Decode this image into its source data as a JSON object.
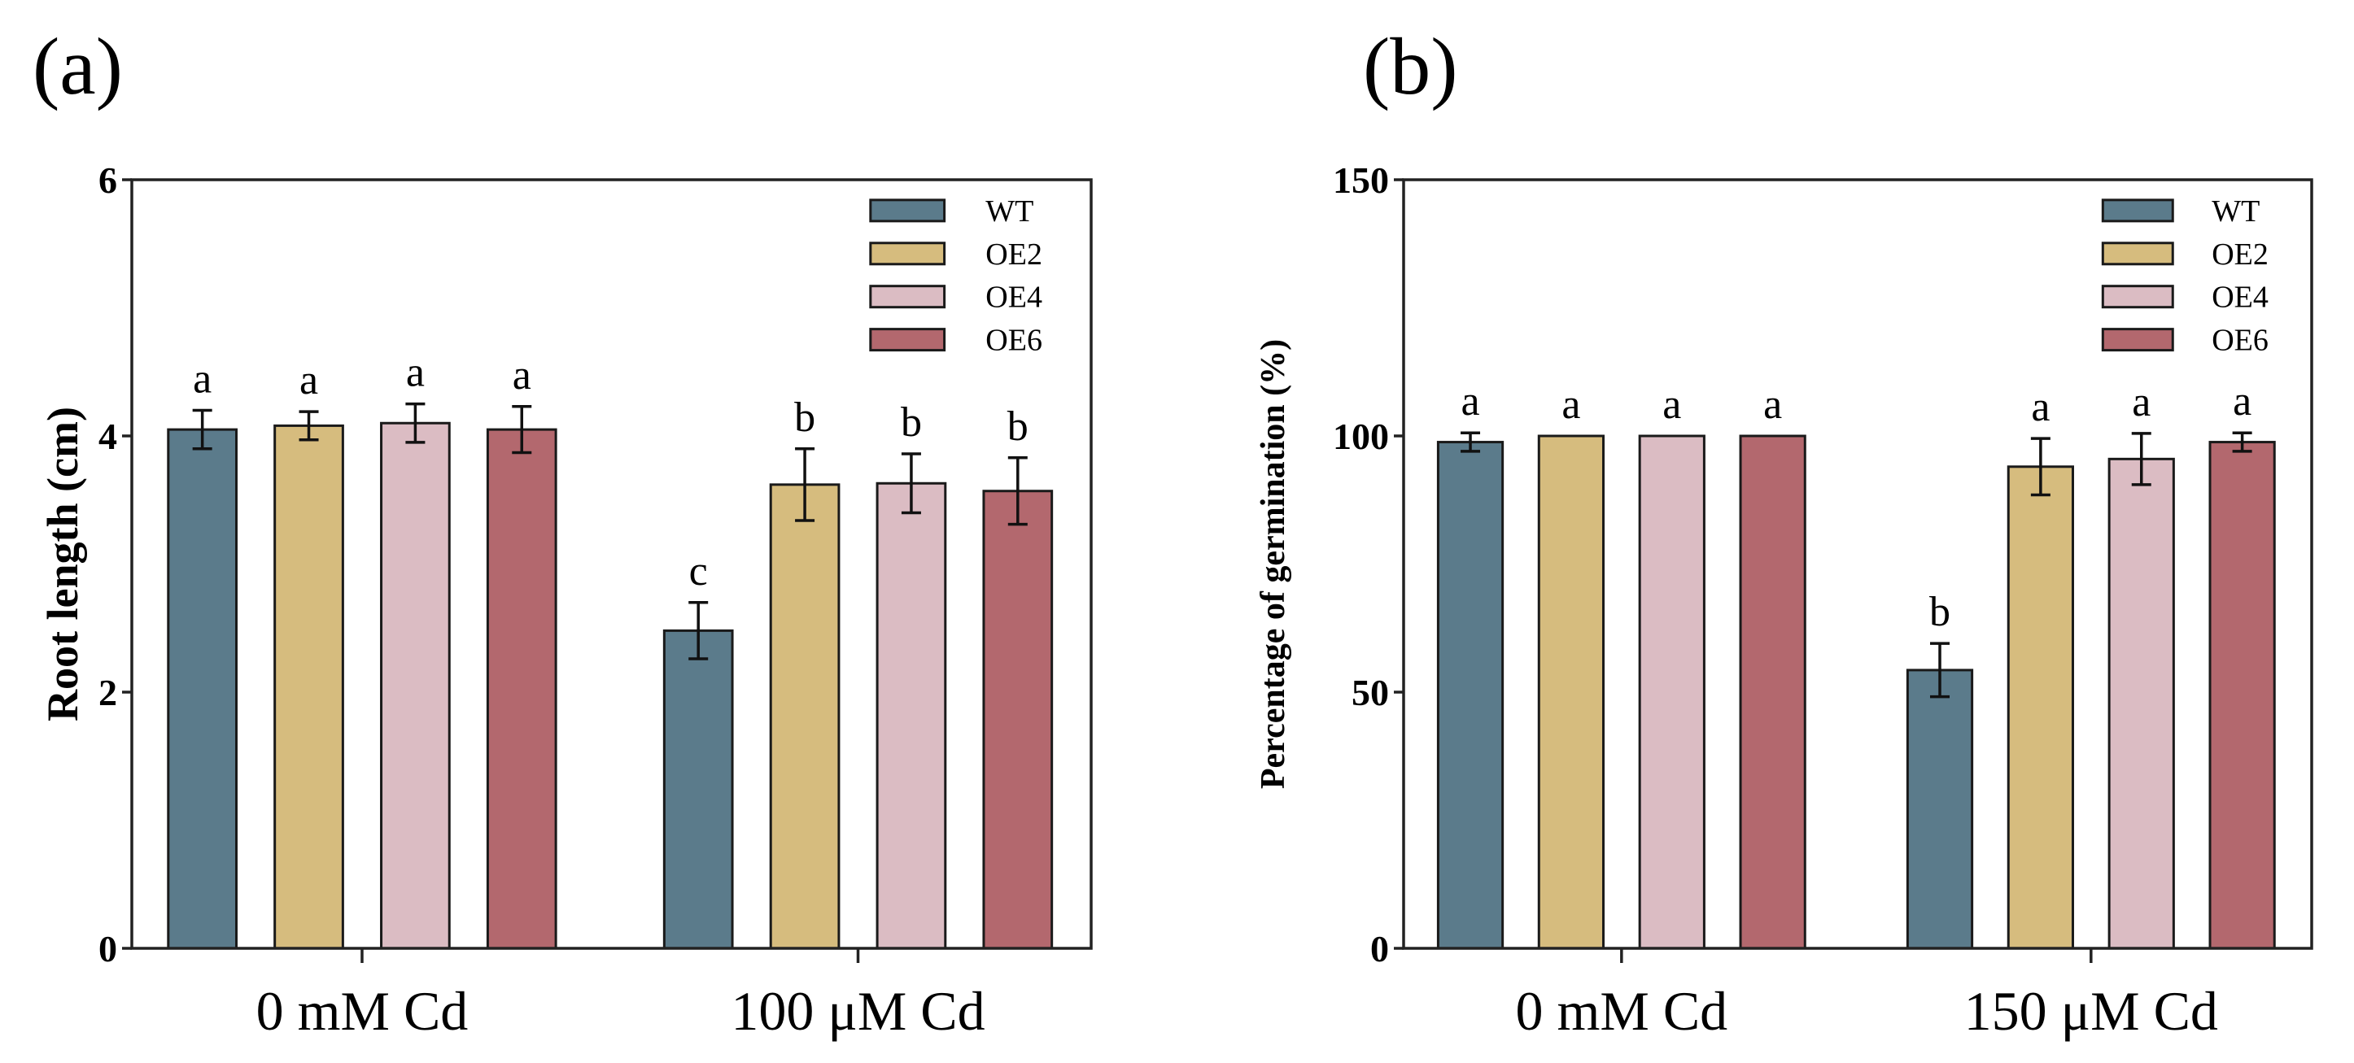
{
  "chart_data": [
    {
      "type": "bar",
      "panel_label": "(a)",
      "ylabel": "Root length (cm)",
      "xlabel": "",
      "ylim": [
        0,
        6
      ],
      "yticks": [
        0,
        2,
        4,
        6
      ],
      "categories": [
        "0 mM Cd",
        "100 μM Cd"
      ],
      "legend_position": "top-right",
      "series": [
        {
          "name": "WT",
          "color": "#5b7b8b",
          "values": [
            4.05,
            2.48
          ],
          "errors": [
            0.15,
            0.22
          ],
          "letters": [
            "a",
            "c"
          ]
        },
        {
          "name": "OE2",
          "color": "#d6bc7e",
          "values": [
            4.08,
            3.62
          ],
          "errors": [
            0.11,
            0.28
          ],
          "letters": [
            "a",
            "b"
          ]
        },
        {
          "name": "OE4",
          "color": "#dbbcc3",
          "values": [
            4.1,
            3.63
          ],
          "errors": [
            0.15,
            0.23
          ],
          "letters": [
            "a",
            "b"
          ]
        },
        {
          "name": "OE6",
          "color": "#b3686e",
          "values": [
            4.05,
            3.57
          ],
          "errors": [
            0.18,
            0.26
          ],
          "letters": [
            "a",
            "b"
          ]
        }
      ]
    },
    {
      "type": "bar",
      "panel_label": "(b)",
      "ylabel": "Percentage of germination (%)",
      "xlabel": "",
      "ylim": [
        0,
        150
      ],
      "yticks": [
        0,
        50,
        100,
        150
      ],
      "categories": [
        "0 mM Cd",
        "150 μM Cd"
      ],
      "legend_position": "top-right",
      "series": [
        {
          "name": "WT",
          "color": "#5b7b8b",
          "values": [
            98.8,
            54.3
          ],
          "errors": [
            1.8,
            5.2
          ],
          "letters": [
            "a",
            "b"
          ]
        },
        {
          "name": "OE2",
          "color": "#d6bc7e",
          "values": [
            100,
            94.0
          ],
          "errors": [
            0,
            5.5
          ],
          "letters": [
            "a",
            "a"
          ]
        },
        {
          "name": "OE4",
          "color": "#dbbcc3",
          "values": [
            100,
            95.5
          ],
          "errors": [
            0,
            5.0
          ],
          "letters": [
            "a",
            "a"
          ]
        },
        {
          "name": "OE6",
          "color": "#b3686e",
          "values": [
            100,
            98.8
          ],
          "errors": [
            0,
            1.8
          ],
          "letters": [
            "a",
            "a"
          ]
        }
      ]
    }
  ]
}
